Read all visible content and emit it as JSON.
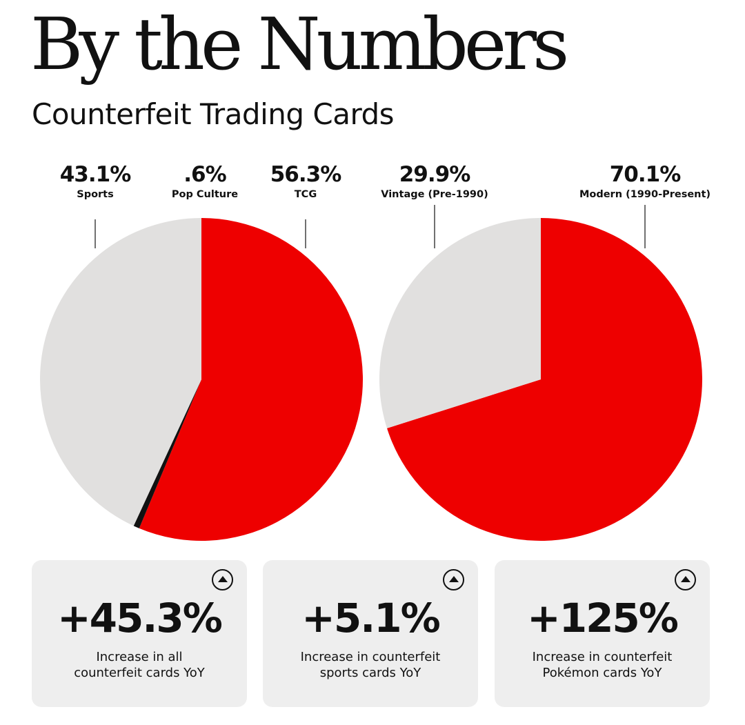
{
  "header": {
    "title": "By the Numbers",
    "subtitle": "Counterfeit Trading Cards"
  },
  "colors": {
    "red": "#ee0000",
    "gray": "#e1e0df",
    "black": "#111111",
    "card_bg": "#eeeeee"
  },
  "chart_data": [
    {
      "type": "pie",
      "title": "",
      "labels": [
        "Sports",
        "Pop Culture",
        "TCG"
      ],
      "values": [
        43.1,
        0.6,
        56.3
      ],
      "value_labels": [
        "43.1%",
        ".6%",
        "56.3%"
      ],
      "colors": [
        "#e1e0df",
        "#111111",
        "#ee0000"
      ],
      "legend": "none"
    },
    {
      "type": "pie",
      "title": "",
      "labels": [
        "Vintage (Pre-1990)",
        "Modern (1990-Present)"
      ],
      "values": [
        29.9,
        70.1
      ],
      "value_labels": [
        "29.9%",
        "70.1%"
      ],
      "colors": [
        "#e1e0df",
        "#ee0000"
      ],
      "legend": "none"
    }
  ],
  "stats": [
    {
      "value": "+45.3%",
      "line1": "Increase in all",
      "line2": "counterfeit cards YoY",
      "icon": "up-arrow-icon"
    },
    {
      "value": "+5.1%",
      "line1": "Increase in counterfeit",
      "line2": "sports cards YoY",
      "icon": "up-arrow-icon"
    },
    {
      "value": "+125%",
      "line1": "Increase in counterfeit",
      "line2": "Pokémon cards YoY",
      "icon": "up-arrow-icon"
    }
  ]
}
